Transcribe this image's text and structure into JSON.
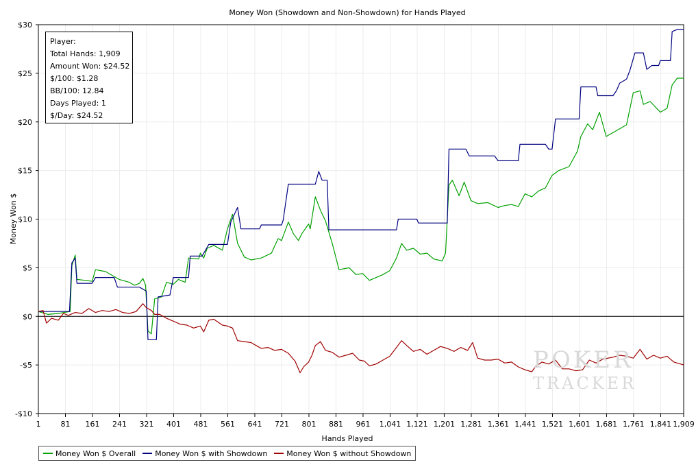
{
  "stats": {
    "player": "Player:",
    "total_hands": "Total Hands: 1,909",
    "amount_won": "Amount Won: $24.52",
    "per_100": "$/100: $1.28",
    "bb_per_100": "BB/100: 12.84",
    "days_played": "Days Played: 1",
    "per_day": "$/Day: $24.52"
  },
  "watermark": {
    "line1": "POKER",
    "line2": "TRACKER"
  },
  "chart_data": {
    "type": "line",
    "title": "Money Won (Showdown and Non-Showdown) for Hands Played",
    "xlabel": "Hands Played",
    "ylabel": "Money Won $",
    "xlim": [
      1,
      1909
    ],
    "ylim": [
      -10,
      30
    ],
    "x_ticks": [
      1,
      81,
      161,
      241,
      321,
      401,
      481,
      561,
      641,
      721,
      801,
      881,
      961,
      1041,
      1121,
      1201,
      1281,
      1361,
      1441,
      1521,
      1601,
      1681,
      1761,
      1841,
      1909
    ],
    "x_tick_labels": [
      "1",
      "81",
      "161",
      "241",
      "321",
      "401",
      "481",
      "561",
      "641",
      "721",
      "801",
      "881",
      "961",
      "1,041",
      "1,121",
      "1,201",
      "1,281",
      "1,361",
      "1,441",
      "1,521",
      "1,601",
      "1,681",
      "1,761",
      "1,841",
      "1,909"
    ],
    "y_ticks": [
      -10,
      -5,
      0,
      5,
      10,
      15,
      20,
      25,
      30
    ],
    "y_tick_labels": [
      "-$10",
      "-$5",
      "$0",
      "$5",
      "$10",
      "$15",
      "$20",
      "$25",
      "$30"
    ],
    "grid": true,
    "legend_position": "bottom-left",
    "series": [
      {
        "name": "Money Won $ Overall",
        "color": "#00a000",
        "points": [
          [
            1,
            0.5
          ],
          [
            30,
            0.2
          ],
          [
            60,
            0.3
          ],
          [
            95,
            0.5
          ],
          [
            100,
            5.2
          ],
          [
            110,
            6.3
          ],
          [
            115,
            3.8
          ],
          [
            140,
            3.7
          ],
          [
            160,
            3.6
          ],
          [
            170,
            4.8
          ],
          [
            200,
            4.6
          ],
          [
            225,
            4.1
          ],
          [
            240,
            3.8
          ],
          [
            270,
            3.5
          ],
          [
            285,
            3.2
          ],
          [
            300,
            3.4
          ],
          [
            310,
            3.9
          ],
          [
            318,
            3.2
          ],
          [
            325,
            -1.5
          ],
          [
            335,
            -1.8
          ],
          [
            345,
            1.8
          ],
          [
            365,
            2.0
          ],
          [
            380,
            3.5
          ],
          [
            400,
            3.3
          ],
          [
            415,
            3.8
          ],
          [
            435,
            3.5
          ],
          [
            445,
            6.0
          ],
          [
            475,
            5.9
          ],
          [
            480,
            6.5
          ],
          [
            490,
            6.0
          ],
          [
            500,
            7.0
          ],
          [
            520,
            7.3
          ],
          [
            545,
            6.8
          ],
          [
            560,
            9.0
          ],
          [
            575,
            10.5
          ],
          [
            590,
            7.5
          ],
          [
            610,
            6.1
          ],
          [
            630,
            5.8
          ],
          [
            660,
            6.0
          ],
          [
            690,
            6.5
          ],
          [
            710,
            8.0
          ],
          [
            720,
            7.8
          ],
          [
            740,
            9.7
          ],
          [
            755,
            8.5
          ],
          [
            770,
            7.8
          ],
          [
            780,
            8.5
          ],
          [
            800,
            9.5
          ],
          [
            805,
            9.0
          ],
          [
            820,
            12.3
          ],
          [
            835,
            10.9
          ],
          [
            850,
            9.8
          ],
          [
            870,
            7.5
          ],
          [
            890,
            4.8
          ],
          [
            920,
            5.0
          ],
          [
            940,
            4.3
          ],
          [
            960,
            4.4
          ],
          [
            980,
            3.7
          ],
          [
            1000,
            4.0
          ],
          [
            1020,
            4.3
          ],
          [
            1040,
            4.7
          ],
          [
            1060,
            6.0
          ],
          [
            1075,
            7.5
          ],
          [
            1090,
            6.8
          ],
          [
            1110,
            7.0
          ],
          [
            1130,
            6.4
          ],
          [
            1150,
            6.5
          ],
          [
            1170,
            5.9
          ],
          [
            1195,
            5.7
          ],
          [
            1205,
            6.5
          ],
          [
            1215,
            13.5
          ],
          [
            1225,
            14.0
          ],
          [
            1245,
            12.4
          ],
          [
            1260,
            13.8
          ],
          [
            1280,
            11.9
          ],
          [
            1300,
            11.6
          ],
          [
            1330,
            11.7
          ],
          [
            1360,
            11.2
          ],
          [
            1380,
            11.4
          ],
          [
            1400,
            11.5
          ],
          [
            1420,
            11.3
          ],
          [
            1440,
            12.6
          ],
          [
            1460,
            12.3
          ],
          [
            1480,
            12.9
          ],
          [
            1500,
            13.2
          ],
          [
            1520,
            14.5
          ],
          [
            1540,
            15.0
          ],
          [
            1570,
            15.4
          ],
          [
            1595,
            17.0
          ],
          [
            1605,
            18.5
          ],
          [
            1625,
            19.8
          ],
          [
            1640,
            19.2
          ],
          [
            1660,
            21.0
          ],
          [
            1680,
            18.5
          ],
          [
            1710,
            19.1
          ],
          [
            1740,
            19.7
          ],
          [
            1760,
            23.0
          ],
          [
            1780,
            23.2
          ],
          [
            1790,
            21.8
          ],
          [
            1810,
            22.1
          ],
          [
            1840,
            21.0
          ],
          [
            1860,
            21.4
          ],
          [
            1875,
            23.8
          ],
          [
            1890,
            24.5
          ],
          [
            1909,
            24.5
          ]
        ]
      },
      {
        "name": "Money Won $ with Showdown",
        "color": "#000080",
        "points": [
          [
            1,
            0.5
          ],
          [
            93,
            0.5
          ],
          [
            100,
            5.5
          ],
          [
            110,
            6.0
          ],
          [
            115,
            3.4
          ],
          [
            160,
            3.4
          ],
          [
            170,
            4.0
          ],
          [
            225,
            4.0
          ],
          [
            235,
            3.0
          ],
          [
            300,
            3.0
          ],
          [
            320,
            2.6
          ],
          [
            325,
            -2.4
          ],
          [
            350,
            -2.4
          ],
          [
            355,
            2.0
          ],
          [
            390,
            2.2
          ],
          [
            400,
            4.0
          ],
          [
            445,
            4.0
          ],
          [
            450,
            6.2
          ],
          [
            485,
            6.2
          ],
          [
            495,
            6.8
          ],
          [
            505,
            7.4
          ],
          [
            560,
            7.4
          ],
          [
            570,
            9.7
          ],
          [
            590,
            11.2
          ],
          [
            600,
            9.0
          ],
          [
            655,
            9.0
          ],
          [
            660,
            9.4
          ],
          [
            720,
            9.4
          ],
          [
            725,
            9.9
          ],
          [
            740,
            13.6
          ],
          [
            820,
            13.6
          ],
          [
            830,
            14.9
          ],
          [
            840,
            14.0
          ],
          [
            855,
            14.0
          ],
          [
            860,
            8.9
          ],
          [
            1060,
            8.9
          ],
          [
            1065,
            10.0
          ],
          [
            1120,
            10.0
          ],
          [
            1125,
            9.6
          ],
          [
            1210,
            9.6
          ],
          [
            1215,
            17.2
          ],
          [
            1265,
            17.2
          ],
          [
            1275,
            16.5
          ],
          [
            1350,
            16.5
          ],
          [
            1360,
            16.0
          ],
          [
            1420,
            16.0
          ],
          [
            1425,
            17.7
          ],
          [
            1500,
            17.7
          ],
          [
            1510,
            17.2
          ],
          [
            1520,
            17.2
          ],
          [
            1530,
            20.3
          ],
          [
            1600,
            20.3
          ],
          [
            1605,
            23.6
          ],
          [
            1650,
            23.6
          ],
          [
            1655,
            22.7
          ],
          [
            1700,
            22.7
          ],
          [
            1710,
            23.2
          ],
          [
            1720,
            24.0
          ],
          [
            1740,
            24.4
          ],
          [
            1750,
            25.3
          ],
          [
            1765,
            27.1
          ],
          [
            1790,
            27.1
          ],
          [
            1800,
            25.4
          ],
          [
            1815,
            25.8
          ],
          [
            1835,
            25.8
          ],
          [
            1840,
            26.3
          ],
          [
            1870,
            26.3
          ],
          [
            1875,
            29.3
          ],
          [
            1890,
            29.5
          ],
          [
            1909,
            29.5
          ]
        ]
      },
      {
        "name": "Money Won $ without Showdown",
        "color": "#a00000",
        "points": [
          [
            1,
            0.5
          ],
          [
            15,
            0.6
          ],
          [
            25,
            -0.7
          ],
          [
            40,
            -0.2
          ],
          [
            60,
            -0.4
          ],
          [
            75,
            0.3
          ],
          [
            90,
            0.1
          ],
          [
            110,
            0.4
          ],
          [
            130,
            0.3
          ],
          [
            150,
            0.8
          ],
          [
            170,
            0.4
          ],
          [
            190,
            0.6
          ],
          [
            210,
            0.5
          ],
          [
            230,
            0.7
          ],
          [
            250,
            0.4
          ],
          [
            270,
            0.3
          ],
          [
            290,
            0.5
          ],
          [
            310,
            1.3
          ],
          [
            320,
            0.9
          ],
          [
            335,
            0.6
          ],
          [
            345,
            0.2
          ],
          [
            360,
            0.2
          ],
          [
            380,
            -0.2
          ],
          [
            400,
            -0.5
          ],
          [
            420,
            -0.8
          ],
          [
            440,
            -0.9
          ],
          [
            460,
            -1.2
          ],
          [
            480,
            -1.0
          ],
          [
            490,
            -1.6
          ],
          [
            505,
            -0.4
          ],
          [
            520,
            -0.3
          ],
          [
            545,
            -0.9
          ],
          [
            560,
            -1.0
          ],
          [
            575,
            -1.2
          ],
          [
            590,
            -2.5
          ],
          [
            610,
            -2.6
          ],
          [
            630,
            -2.7
          ],
          [
            645,
            -3.0
          ],
          [
            660,
            -3.3
          ],
          [
            680,
            -3.2
          ],
          [
            700,
            -3.5
          ],
          [
            720,
            -3.4
          ],
          [
            740,
            -3.8
          ],
          [
            760,
            -4.6
          ],
          [
            775,
            -5.8
          ],
          [
            785,
            -5.2
          ],
          [
            800,
            -4.7
          ],
          [
            810,
            -4.0
          ],
          [
            820,
            -3.0
          ],
          [
            835,
            -2.6
          ],
          [
            850,
            -3.5
          ],
          [
            870,
            -3.7
          ],
          [
            890,
            -4.2
          ],
          [
            910,
            -4.0
          ],
          [
            930,
            -3.8
          ],
          [
            950,
            -4.5
          ],
          [
            965,
            -4.6
          ],
          [
            980,
            -5.1
          ],
          [
            1000,
            -4.9
          ],
          [
            1020,
            -4.5
          ],
          [
            1040,
            -4.1
          ],
          [
            1060,
            -3.2
          ],
          [
            1075,
            -2.5
          ],
          [
            1090,
            -3.0
          ],
          [
            1110,
            -3.6
          ],
          [
            1130,
            -3.4
          ],
          [
            1150,
            -3.9
          ],
          [
            1170,
            -3.5
          ],
          [
            1190,
            -3.1
          ],
          [
            1210,
            -3.3
          ],
          [
            1230,
            -3.6
          ],
          [
            1250,
            -3.2
          ],
          [
            1270,
            -3.5
          ],
          [
            1285,
            -2.7
          ],
          [
            1300,
            -4.3
          ],
          [
            1320,
            -4.5
          ],
          [
            1340,
            -4.5
          ],
          [
            1360,
            -4.4
          ],
          [
            1380,
            -4.8
          ],
          [
            1400,
            -4.7
          ],
          [
            1420,
            -5.2
          ],
          [
            1440,
            -5.5
          ],
          [
            1460,
            -5.7
          ],
          [
            1470,
            -5.2
          ],
          [
            1490,
            -4.7
          ],
          [
            1510,
            -4.9
          ],
          [
            1530,
            -4.5
          ],
          [
            1550,
            -5.4
          ],
          [
            1570,
            -5.4
          ],
          [
            1590,
            -5.6
          ],
          [
            1610,
            -5.5
          ],
          [
            1630,
            -4.5
          ],
          [
            1650,
            -4.8
          ],
          [
            1670,
            -4.4
          ],
          [
            1700,
            -4.2
          ],
          [
            1720,
            -4.0
          ],
          [
            1740,
            -4.1
          ],
          [
            1760,
            -4.3
          ],
          [
            1780,
            -3.4
          ],
          [
            1800,
            -4.4
          ],
          [
            1820,
            -4.0
          ],
          [
            1840,
            -4.3
          ],
          [
            1860,
            -4.1
          ],
          [
            1880,
            -4.7
          ],
          [
            1909,
            -5.0
          ]
        ]
      }
    ]
  }
}
